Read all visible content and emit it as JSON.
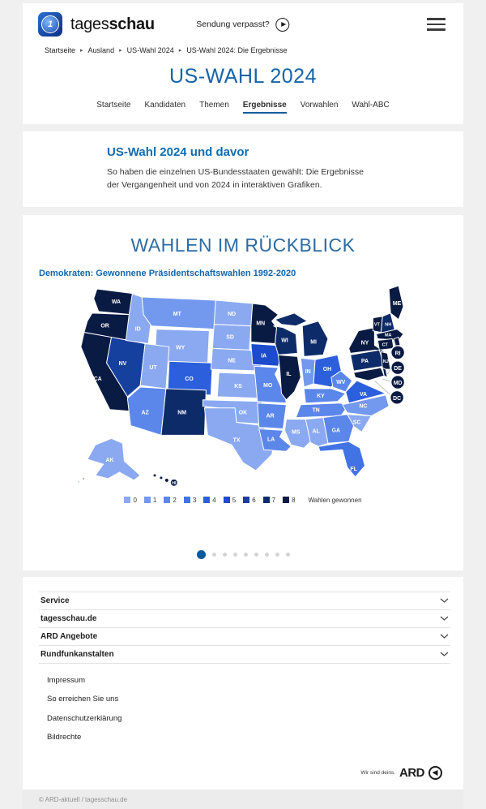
{
  "header": {
    "brand": {
      "name_regular": "tages",
      "name_bold": "schau"
    },
    "watch": {
      "label": "Sendung verpasst?"
    }
  },
  "breadcrumb": {
    "items": [
      "Startseite",
      "Ausland",
      "US-Wahl 2024",
      "US-Wahl 2024: Die Ergebnisse"
    ],
    "separator": "▸"
  },
  "page": {
    "title": "US-WAHL 2024",
    "tabs": [
      "Startseite",
      "Kandidaten",
      "Themen",
      "Ergebnisse",
      "Vorwahlen",
      "Wahl-ABC"
    ],
    "active_tab": "Ergebnisse"
  },
  "teaser": {
    "title": "US-Wahl 2024 und davor",
    "text": "So haben die einzelnen US-Bundesstaaten gewählt: Die Ergebnisse der Vergangenheit und von 2024 in interaktiven Grafiken."
  },
  "chart_data": {
    "type": "choropleth_map",
    "title": "WAHLEN IM RÜCKBLICK",
    "subtitle": "Demokraten: Gewonnene Präsidentschaftswahlen 1992-2020",
    "unit": "Wahlen gewonnen",
    "legend": {
      "values": [
        0,
        1,
        2,
        3,
        4,
        5,
        6,
        7,
        8
      ],
      "caption": "Wahlen gewonnen",
      "colors": [
        "#8aa9f1",
        "#7399ee",
        "#5b87ea",
        "#4273e4",
        "#2c5fdb",
        "#1c4ccd",
        "#16409e",
        "#0e2b69",
        "#091a43"
      ]
    },
    "states": [
      {
        "abbr": "WA",
        "wins": 8
      },
      {
        "abbr": "OR",
        "wins": 8
      },
      {
        "abbr": "CA",
        "wins": 8
      },
      {
        "abbr": "NV",
        "wins": 6
      },
      {
        "abbr": "ID",
        "wins": 0
      },
      {
        "abbr": "MT",
        "wins": 1
      },
      {
        "abbr": "WY",
        "wins": 0
      },
      {
        "abbr": "UT",
        "wins": 0
      },
      {
        "abbr": "CO",
        "wins": 4
      },
      {
        "abbr": "AZ",
        "wins": 2
      },
      {
        "abbr": "NM",
        "wins": 7
      },
      {
        "abbr": "ND",
        "wins": 0
      },
      {
        "abbr": "SD",
        "wins": 0
      },
      {
        "abbr": "NE",
        "wins": 0
      },
      {
        "abbr": "KS",
        "wins": 0
      },
      {
        "abbr": "OK",
        "wins": 0
      },
      {
        "abbr": "TX",
        "wins": 0
      },
      {
        "abbr": "MN",
        "wins": 8
      },
      {
        "abbr": "IA",
        "wins": 5
      },
      {
        "abbr": "MO",
        "wins": 2
      },
      {
        "abbr": "AR",
        "wins": 2
      },
      {
        "abbr": "LA",
        "wins": 2
      },
      {
        "abbr": "WI",
        "wins": 7
      },
      {
        "abbr": "IL",
        "wins": 8
      },
      {
        "abbr": "MI",
        "wins": 7
      },
      {
        "abbr": "IN",
        "wins": 1
      },
      {
        "abbr": "OH",
        "wins": 4
      },
      {
        "abbr": "KY",
        "wins": 2
      },
      {
        "abbr": "TN",
        "wins": 2
      },
      {
        "abbr": "WV",
        "wins": 2
      },
      {
        "abbr": "VA",
        "wins": 4
      },
      {
        "abbr": "NC",
        "wins": 1
      },
      {
        "abbr": "SC",
        "wins": 0
      },
      {
        "abbr": "GA",
        "wins": 2
      },
      {
        "abbr": "AL",
        "wins": 0
      },
      {
        "abbr": "MS",
        "wins": 0
      },
      {
        "abbr": "FL",
        "wins": 3
      },
      {
        "abbr": "NY",
        "wins": 8
      },
      {
        "abbr": "PA",
        "wins": 7
      },
      {
        "abbr": "NJ",
        "wins": 8
      },
      {
        "abbr": "ME",
        "wins": 8
      },
      {
        "abbr": "NH",
        "wins": 7
      },
      {
        "abbr": "VT",
        "wins": 8
      },
      {
        "abbr": "MA",
        "wins": 8
      },
      {
        "abbr": "CT",
        "wins": 8
      },
      {
        "abbr": "RI",
        "wins": 8
      },
      {
        "abbr": "DE",
        "wins": 8
      },
      {
        "abbr": "MD",
        "wins": 8
      },
      {
        "abbr": "DC",
        "wins": 8
      },
      {
        "abbr": "AK",
        "wins": 0
      },
      {
        "abbr": "HI",
        "wins": 8
      }
    ],
    "callouts": [
      "RI",
      "DE",
      "MD",
      "DC"
    ]
  },
  "carousel": {
    "total": 9,
    "active_index": 0
  },
  "footer": {
    "accordions": [
      "Service",
      "tagesschau.de",
      "ARD Angebote",
      "Rundfunkanstalten"
    ],
    "links": [
      "Impressum",
      "So erreichen Sie uns",
      "Datenschutzerklärung",
      "Bildrechte"
    ],
    "ard": {
      "tagline": "Wir sind deins.",
      "brand": "ARD"
    },
    "copyright": "© ARD-aktuell / tagesschau.de"
  }
}
